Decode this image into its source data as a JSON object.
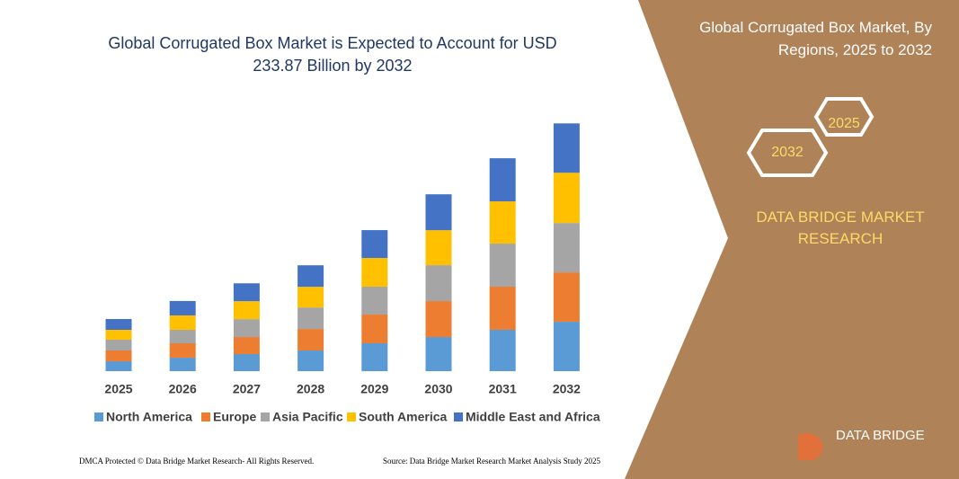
{
  "chart_data": {
    "type": "stacked_bar",
    "title": "Global Corrugated Box Market is Expected to Account for USD 233.87 Billion by 2032",
    "categories": [
      "2025",
      "2026",
      "2027",
      "2028",
      "2029",
      "2030",
      "2031",
      "2032"
    ],
    "series": [
      {
        "name": "North America",
        "color": "#5b9bd5",
        "values": [
          9.3,
          12.7,
          16.1,
          19.5,
          26.3,
          32.2,
          39.0,
          46.6
        ]
      },
      {
        "name": "Europe",
        "color": "#ed7d31",
        "values": [
          10.2,
          13.6,
          16.1,
          20.3,
          27.1,
          33.9,
          40.7,
          46.6
        ]
      },
      {
        "name": "Asia Pacific",
        "color": "#a5a5a5",
        "values": [
          10.2,
          12.7,
          16.9,
          20.3,
          26.3,
          33.9,
          40.7,
          46.6
        ]
      },
      {
        "name": "South America",
        "color": "#ffc000",
        "values": [
          9.3,
          13.6,
          16.9,
          19.5,
          27.1,
          33.0,
          39.8,
          47.4
        ]
      },
      {
        "name": "Middle East and Africa",
        "color": "#4472c4",
        "values": [
          10.2,
          13.6,
          16.9,
          20.3,
          26.3,
          33.9,
          40.7,
          46.6
        ]
      }
    ],
    "ylim": [
      0,
      240
    ]
  },
  "side_panel": {
    "title": "Global Corrugated Box Market, By Regions, 2025 to 2032",
    "hexagons": [
      "2025",
      "2032"
    ],
    "brand": "DATA BRIDGE MARKET RESEARCH"
  },
  "logo": "DATA BRIDGE",
  "footer": {
    "left": "DMCA Protected © Data Bridge Market Research- All Rights Reserved.",
    "right": "Source: Data Bridge Market Research  Market Analysis Study 2025"
  }
}
